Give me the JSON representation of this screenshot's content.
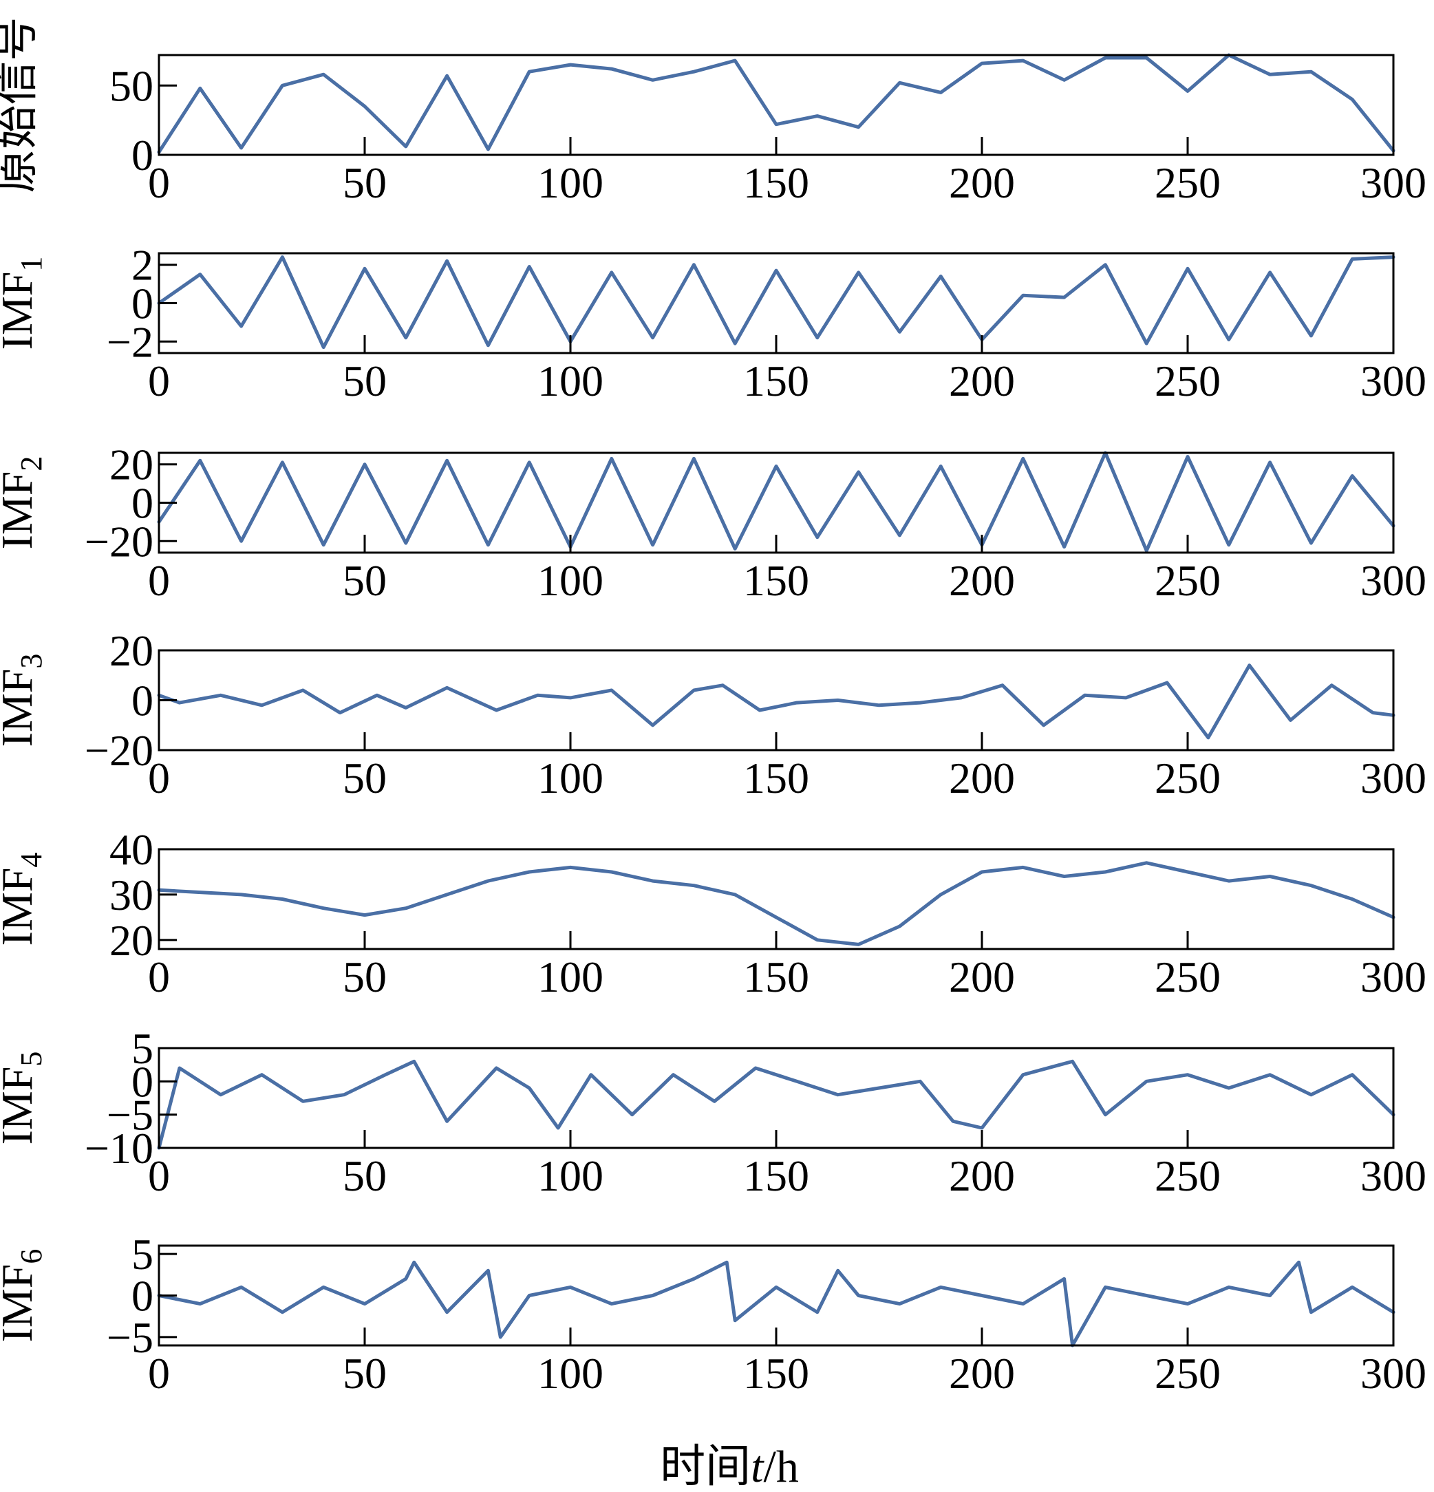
{
  "figure": {
    "xlabel_prefix": "时间",
    "xlabel_var": "t",
    "xlabel_unit": "/h"
  },
  "colors": {
    "line": "#4a6fa5",
    "axes": "#000000",
    "background": "#ffffff"
  },
  "chart_data": [
    {
      "type": "line",
      "label": "原始信号",
      "label_sub": "",
      "xlim": [
        0,
        300
      ],
      "ylim": [
        0,
        72
      ],
      "xticks": [
        0,
        50,
        100,
        150,
        200,
        250,
        300
      ],
      "yticks": [
        0,
        50
      ],
      "ytick_labels": [
        "0",
        "50"
      ],
      "x": [
        0,
        10,
        20,
        30,
        40,
        50,
        60,
        70,
        80,
        90,
        100,
        110,
        120,
        130,
        140,
        150,
        160,
        170,
        180,
        190,
        200,
        210,
        220,
        230,
        240,
        250,
        260,
        270,
        280,
        290,
        300
      ],
      "values": [
        2,
        48,
        5,
        50,
        58,
        35,
        6,
        57,
        4,
        60,
        65,
        62,
        54,
        60,
        68,
        22,
        28,
        20,
        52,
        45,
        66,
        68,
        54,
        70,
        70,
        46,
        72,
        58,
        60,
        40,
        3
      ]
    },
    {
      "type": "line",
      "label": "IMF",
      "label_sub": "1",
      "xlim": [
        0,
        300
      ],
      "ylim": [
        -2.6,
        2.6
      ],
      "xticks": [
        0,
        50,
        100,
        150,
        200,
        250,
        300
      ],
      "yticks": [
        2,
        0,
        -2
      ],
      "ytick_labels": [
        "2",
        "0",
        "−2"
      ],
      "x": [
        0,
        10,
        20,
        30,
        40,
        50,
        60,
        70,
        80,
        90,
        100,
        110,
        120,
        130,
        140,
        150,
        160,
        170,
        180,
        190,
        200,
        210,
        220,
        230,
        240,
        250,
        260,
        270,
        280,
        290,
        300
      ],
      "values": [
        0,
        1.5,
        -1.2,
        2.4,
        -2.3,
        1.8,
        -1.8,
        2.2,
        -2.2,
        1.9,
        -2.0,
        1.6,
        -1.8,
        2.0,
        -2.1,
        1.7,
        -1.8,
        1.6,
        -1.5,
        1.4,
        -1.9,
        0.4,
        0.3,
        2.0,
        -2.1,
        1.8,
        -1.9,
        1.6,
        -1.7,
        2.3,
        2.4
      ]
    },
    {
      "type": "line",
      "label": "IMF",
      "label_sub": "2",
      "xlim": [
        0,
        300
      ],
      "ylim": [
        -26,
        26
      ],
      "xticks": [
        0,
        50,
        100,
        150,
        200,
        250,
        300
      ],
      "yticks": [
        20,
        0,
        -20
      ],
      "ytick_labels": [
        "20",
        "0",
        "−20"
      ],
      "x": [
        0,
        10,
        20,
        30,
        40,
        50,
        60,
        70,
        80,
        90,
        100,
        110,
        120,
        130,
        140,
        150,
        160,
        170,
        180,
        190,
        200,
        210,
        220,
        230,
        240,
        250,
        260,
        270,
        280,
        290,
        300
      ],
      "values": [
        -10,
        22,
        -20,
        21,
        -22,
        20,
        -21,
        22,
        -22,
        21,
        -23,
        23,
        -22,
        23,
        -24,
        19,
        -18,
        16,
        -17,
        19,
        -22,
        23,
        -23,
        26,
        -25,
        24,
        -22,
        21,
        -21,
        14,
        -12
      ]
    },
    {
      "type": "line",
      "label": "IMF",
      "label_sub": "3",
      "xlim": [
        0,
        300
      ],
      "ylim": [
        -20,
        20
      ],
      "xticks": [
        0,
        50,
        100,
        150,
        200,
        250,
        300
      ],
      "yticks": [
        20,
        0,
        -20
      ],
      "ytick_labels": [
        "20",
        "0",
        "−20"
      ],
      "x": [
        0,
        5,
        15,
        25,
        35,
        44,
        53,
        60,
        70,
        82,
        92,
        100,
        110,
        120,
        130,
        137,
        146,
        155,
        165,
        175,
        185,
        195,
        205,
        215,
        225,
        235,
        245,
        255,
        265,
        275,
        285,
        295,
        300
      ],
      "values": [
        2,
        -1,
        2,
        -2,
        4,
        -5,
        2,
        -3,
        5,
        -4,
        2,
        1,
        4,
        -10,
        4,
        6,
        -4,
        -1,
        0,
        -2,
        -1,
        1,
        6,
        -10,
        2,
        1,
        7,
        -15,
        14,
        -8,
        6,
        -5,
        -6
      ]
    },
    {
      "type": "line",
      "label": "IMF",
      "label_sub": "4",
      "xlim": [
        0,
        300
      ],
      "ylim": [
        18,
        40
      ],
      "xticks": [
        0,
        50,
        100,
        150,
        200,
        250,
        300
      ],
      "yticks": [
        40,
        30,
        20
      ],
      "ytick_labels": [
        "40",
        "30",
        "20"
      ],
      "x": [
        0,
        10,
        20,
        30,
        40,
        50,
        60,
        70,
        80,
        90,
        100,
        110,
        120,
        130,
        140,
        150,
        160,
        170,
        180,
        190,
        200,
        210,
        220,
        230,
        240,
        250,
        260,
        270,
        280,
        290,
        300
      ],
      "values": [
        31,
        30.5,
        30,
        29,
        27,
        25.5,
        27,
        30,
        33,
        35,
        36,
        35,
        33,
        32,
        30,
        25,
        20,
        19,
        23,
        30,
        35,
        36,
        34,
        35,
        37,
        35,
        33,
        34,
        32,
        29,
        25
      ]
    },
    {
      "type": "line",
      "label": "IMF",
      "label_sub": "5",
      "xlim": [
        0,
        300
      ],
      "ylim": [
        -10,
        5
      ],
      "xticks": [
        0,
        50,
        100,
        150,
        200,
        250,
        300
      ],
      "yticks": [
        5,
        0,
        -5,
        -10
      ],
      "ytick_labels": [
        "5",
        "0",
        "−5",
        "−10"
      ],
      "x": [
        0,
        5,
        15,
        25,
        35,
        45,
        55,
        62,
        70,
        82,
        90,
        97,
        105,
        115,
        125,
        135,
        145,
        155,
        165,
        175,
        185,
        193,
        200,
        210,
        222,
        230,
        240,
        250,
        260,
        270,
        280,
        290,
        300
      ],
      "values": [
        -10,
        2,
        -2,
        1,
        -3,
        -2,
        1,
        3,
        -6,
        2,
        -1,
        -7,
        1,
        -5,
        1,
        -3,
        2,
        0,
        -2,
        -1,
        0,
        -6,
        -7,
        1,
        3,
        -5,
        0,
        1,
        -1,
        1,
        -2,
        1,
        -5
      ]
    },
    {
      "type": "line",
      "label": "IMF",
      "label_sub": "6",
      "xlim": [
        0,
        300
      ],
      "ylim": [
        -6,
        6
      ],
      "xticks": [
        0,
        50,
        100,
        150,
        200,
        250,
        300
      ],
      "yticks": [
        5,
        0,
        -5
      ],
      "ytick_labels": [
        "5",
        "0",
        "−5"
      ],
      "x": [
        0,
        10,
        20,
        30,
        40,
        50,
        60,
        62,
        70,
        80,
        83,
        90,
        100,
        110,
        120,
        130,
        138,
        140,
        150,
        160,
        165,
        170,
        180,
        190,
        200,
        210,
        220,
        222,
        230,
        240,
        250,
        260,
        270,
        277,
        280,
        290,
        300
      ],
      "values": [
        0,
        -1,
        1,
        -2,
        1,
        -1,
        2,
        4,
        -2,
        3,
        -5,
        0,
        1,
        -1,
        0,
        2,
        4,
        -3,
        1,
        -2,
        3,
        0,
        -1,
        1,
        0,
        -1,
        2,
        -6,
        1,
        0,
        -1,
        1,
        0,
        4,
        -2,
        1,
        -2
      ]
    }
  ]
}
